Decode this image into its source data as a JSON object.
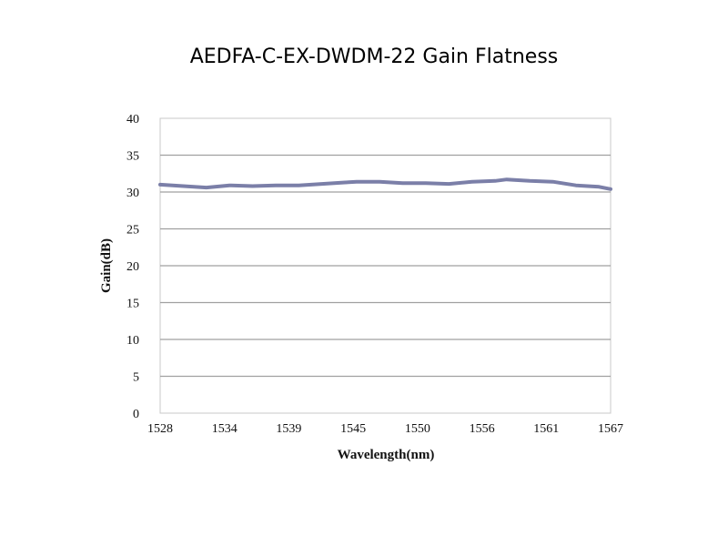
{
  "chart_data": {
    "type": "line",
    "title": "AEDFA-C-EX-DWDM-22 Gain Flatness",
    "xlabel": "Wavelength(nm)",
    "ylabel": "Gain(dB)",
    "xlim": [
      1528,
      1567
    ],
    "ylim": [
      0,
      40
    ],
    "x_ticks": [
      "1528",
      "1534",
      "1539",
      "1545",
      "1550",
      "1556",
      "1561",
      "1567"
    ],
    "y_ticks": [
      "0",
      "5",
      "10",
      "15",
      "20",
      "25",
      "30",
      "35",
      "40"
    ],
    "grid": "horizontal",
    "legend": "none",
    "line_color": "#7b7fa8",
    "series": [
      {
        "x": [
          1528,
          1530,
          1532,
          1534,
          1536,
          1538,
          1540,
          1542,
          1544,
          1545,
          1547,
          1549,
          1551,
          1553,
          1555,
          1557,
          1558,
          1560,
          1562,
          1564,
          1566,
          1567
        ],
        "values": [
          31.0,
          30.8,
          30.6,
          30.9,
          30.8,
          30.9,
          30.9,
          31.1,
          31.3,
          31.4,
          31.4,
          31.2,
          31.2,
          31.1,
          31.4,
          31.5,
          31.7,
          31.5,
          31.4,
          30.9,
          30.7,
          30.4
        ]
      }
    ]
  }
}
